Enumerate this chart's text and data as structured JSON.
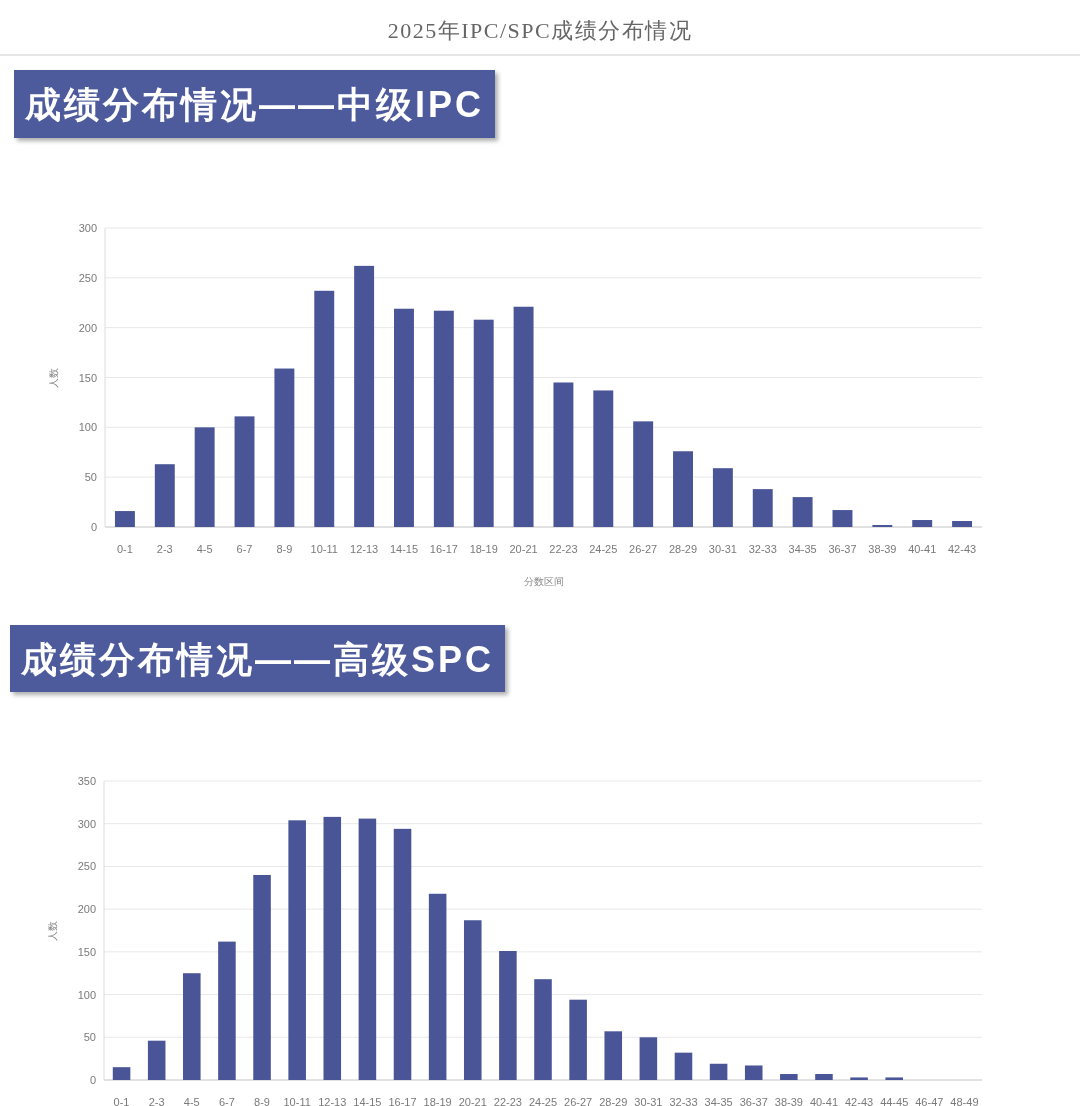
{
  "chart_data": [
    {
      "type": "bar",
      "annotations": [
        "2025年IPC/SPC成绩分布情况"
      ],
      "title": "成绩分布情况——中级IPC",
      "xlabel": "分数区间",
      "ylabel": "人数",
      "categories": [
        "0-1",
        "2-3",
        "4-5",
        "6-7",
        "8-9",
        "10-11",
        "12-13",
        "14-15",
        "16-17",
        "18-19",
        "20-21",
        "22-23",
        "24-25",
        "26-27",
        "28-29",
        "30-31",
        "32-33",
        "34-35",
        "36-37",
        "38-39",
        "40-41",
        "42-43"
      ],
      "values": [
        16,
        63,
        100,
        111,
        159,
        237,
        262,
        219,
        217,
        208,
        221,
        145,
        137,
        106,
        76,
        59,
        38,
        30,
        17,
        2,
        7,
        6
      ],
      "color": "#4a5598",
      "ylim": [
        0,
        300
      ],
      "yticks": [
        0,
        50,
        100,
        150,
        200,
        250,
        300
      ],
      "grid": "y"
    },
    {
      "type": "bar",
      "title": "成绩分布情况——高级SPC",
      "ylabel": "人数",
      "categories": [
        "0-1",
        "2-3",
        "4-5",
        "6-7",
        "8-9",
        "10-11",
        "12-13",
        "14-15",
        "16-17",
        "18-19",
        "20-21",
        "22-23",
        "24-25",
        "26-27",
        "28-29",
        "30-31",
        "32-33",
        "34-35",
        "36-37",
        "38-39",
        "40-41",
        "42-43",
        "44-45",
        "46-47",
        "48-49"
      ],
      "values": [
        15,
        46,
        125,
        162,
        240,
        304,
        308,
        306,
        294,
        218,
        187,
        151,
        118,
        94,
        57,
        50,
        32,
        19,
        17,
        7,
        7,
        3,
        3,
        0,
        0
      ],
      "color": "#4a5598",
      "ylim": [
        0,
        350
      ],
      "yticks": [
        0,
        50,
        100,
        150,
        200,
        250,
        300,
        350
      ],
      "grid": "y"
    }
  ]
}
